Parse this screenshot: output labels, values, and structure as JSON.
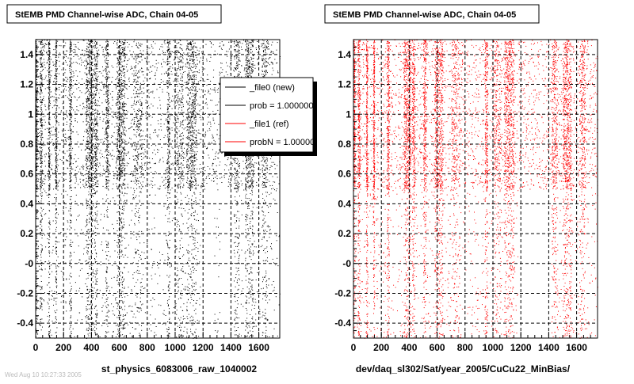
{
  "chart_data": [
    {
      "type": "scatter",
      "title": "StEMB PMD Channel-wise ADC, Chain 04-05",
      "xlabel": "st_physics_6083006_raw_1040002",
      "ylabel": "",
      "xlim": [
        0,
        1750
      ],
      "ylim": [
        -0.5,
        1.5
      ],
      "x_ticks": [
        0,
        200,
        400,
        600,
        800,
        1000,
        1200,
        1400,
        1600
      ],
      "x_tick_labels": [
        "0",
        "200",
        "400",
        "600",
        "800",
        "1000",
        "1200",
        "1400",
        "1600"
      ],
      "y_ticks": [
        -0.4,
        -0.2,
        0,
        0.2,
        0.4,
        0.6,
        0.8,
        1,
        1.2,
        1.4
      ],
      "y_tick_labels": [
        "-0.4",
        "-0.2",
        "-0",
        "0.2",
        "0.4",
        "0.6",
        "0.8",
        "1",
        "1.2",
        "1.4"
      ],
      "grid": true,
      "point_color": "#000000",
      "legend": {
        "placement": "top-right",
        "entries": [
          {
            "label": "_file0 (new)",
            "color": "#000000"
          },
          {
            "label": "prob = 1.000000",
            "color": "#000000"
          },
          {
            "label": "_file1 (ref)",
            "color": "#ff0000"
          },
          {
            "label": "probN = 1.000000",
            "color": "#ff0000"
          }
        ]
      },
      "bands": [
        {
          "x": [
            0,
            10
          ],
          "density": "dense"
        },
        {
          "x": [
            30,
            45
          ],
          "density": "dense"
        },
        {
          "x": [
            90,
            100
          ],
          "density": "dense"
        },
        {
          "x": [
            140,
            150
          ],
          "density": "dense"
        },
        {
          "x": [
            240,
            255
          ],
          "density": "dense"
        },
        {
          "x": [
            360,
            410
          ],
          "density": "very-dense"
        },
        {
          "x": [
            420,
            440
          ],
          "density": "dense"
        },
        {
          "x": [
            500,
            520
          ],
          "density": "dense"
        },
        {
          "x": [
            580,
            640
          ],
          "density": "very-dense"
        },
        {
          "x": [
            700,
            760
          ],
          "density": "dense"
        },
        {
          "x": [
            940,
            960
          ],
          "density": "dense"
        },
        {
          "x": [
            1000,
            1060
          ],
          "density": "dense"
        },
        {
          "x": [
            1080,
            1150
          ],
          "density": "very-dense"
        },
        {
          "x": [
            1420,
            1460
          ],
          "density": "dense"
        },
        {
          "x": [
            1500,
            1560
          ],
          "density": "very-dense"
        },
        {
          "x": [
            1620,
            1660
          ],
          "density": "dense"
        }
      ],
      "empty_regions": [
        {
          "x": [
            1180,
            1280
          ],
          "y": [
            -0.5,
            0.5
          ]
        },
        {
          "x": [
            1320,
            1420
          ],
          "y": [
            -0.5,
            0.5
          ]
        }
      ]
    },
    {
      "type": "scatter",
      "title": "StEMB PMD Channel-wise ADC, Chain 04-05",
      "xlabel": "dev/daq_sl302/Sat/year_2005/CuCu22_MinBias/",
      "ylabel": "",
      "xlim": [
        0,
        1750
      ],
      "ylim": [
        -0.5,
        1.5
      ],
      "x_ticks": [
        0,
        200,
        400,
        600,
        800,
        1000,
        1200,
        1400,
        1600
      ],
      "x_tick_labels": [
        "0",
        "200",
        "400",
        "600",
        "800",
        "1000",
        "1200",
        "1400",
        "1600"
      ],
      "y_ticks": [
        -0.4,
        -0.2,
        0,
        0.2,
        0.4,
        0.6,
        0.8,
        1,
        1.2,
        1.4
      ],
      "y_tick_labels": [
        "-0.4",
        "-0.2",
        "-0",
        "0.2",
        "0.4",
        "0.6",
        "0.8",
        "1",
        "1.2",
        "1.4"
      ],
      "grid": true,
      "point_color": "#ff0000",
      "bands": [
        {
          "x": [
            0,
            10
          ],
          "density": "dense"
        },
        {
          "x": [
            30,
            45
          ],
          "density": "dense"
        },
        {
          "x": [
            90,
            100
          ],
          "density": "dense"
        },
        {
          "x": [
            140,
            150
          ],
          "density": "dense"
        },
        {
          "x": [
            240,
            255
          ],
          "density": "dense"
        },
        {
          "x": [
            360,
            410
          ],
          "density": "very-dense"
        },
        {
          "x": [
            420,
            440
          ],
          "density": "dense"
        },
        {
          "x": [
            500,
            520
          ],
          "density": "dense"
        },
        {
          "x": [
            580,
            640
          ],
          "density": "very-dense"
        },
        {
          "x": [
            700,
            760
          ],
          "density": "dense"
        },
        {
          "x": [
            940,
            960
          ],
          "density": "dense"
        },
        {
          "x": [
            1000,
            1060
          ],
          "density": "dense"
        },
        {
          "x": [
            1080,
            1150
          ],
          "density": "very-dense"
        },
        {
          "x": [
            1420,
            1460
          ],
          "density": "dense"
        },
        {
          "x": [
            1500,
            1560
          ],
          "density": "very-dense"
        },
        {
          "x": [
            1620,
            1660
          ],
          "density": "dense"
        }
      ],
      "empty_regions": [
        {
          "x": [
            1180,
            1420
          ],
          "y": [
            -0.5,
            0.5
          ]
        }
      ]
    }
  ],
  "footer_text": "Wed Aug 10 10:27:33 2005"
}
